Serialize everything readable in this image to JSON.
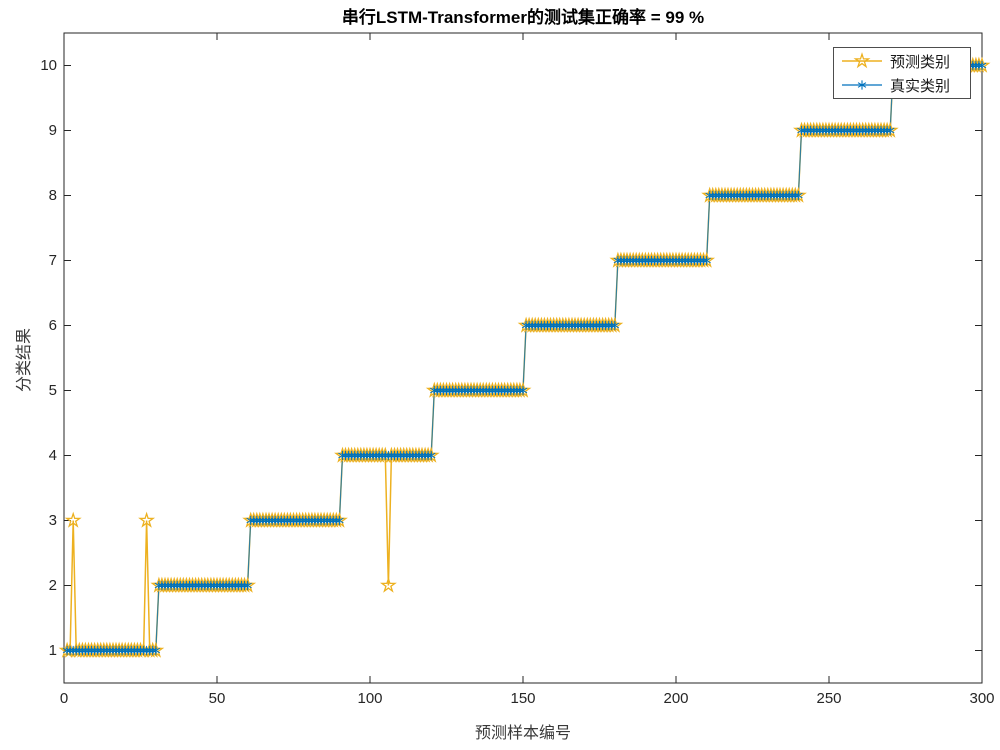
{
  "figure": {
    "background": "#ffffff"
  },
  "chart_data": {
    "type": "line",
    "title": "串行LSTM-Transformer的测试集正确率 = 99 %",
    "xlabel": "预测样本编号",
    "ylabel": "分类结果",
    "xlim": [
      0,
      300
    ],
    "ylim": [
      0.5,
      10.5
    ],
    "xticks": [
      0,
      50,
      100,
      150,
      200,
      250,
      300
    ],
    "yticks": [
      1,
      2,
      3,
      4,
      5,
      6,
      7,
      8,
      9,
      10
    ],
    "grid": false,
    "legend_position": "northeast",
    "axis_color": "#262626",
    "n_samples": 300,
    "samples_per_class": 30,
    "accuracy_percent": 99,
    "true_segments": [
      {
        "from": 1,
        "to": 30,
        "value": 1
      },
      {
        "from": 31,
        "to": 60,
        "value": 2
      },
      {
        "from": 61,
        "to": 90,
        "value": 3
      },
      {
        "from": 91,
        "to": 120,
        "value": 4
      },
      {
        "from": 121,
        "to": 150,
        "value": 5
      },
      {
        "from": 151,
        "to": 180,
        "value": 6
      },
      {
        "from": 181,
        "to": 210,
        "value": 7
      },
      {
        "from": 211,
        "to": 240,
        "value": 8
      },
      {
        "from": 241,
        "to": 270,
        "value": 9
      },
      {
        "from": 271,
        "to": 300,
        "value": 10
      }
    ],
    "series": [
      {
        "name": "预测类别",
        "color": "#EDB120",
        "marker": "pentagram",
        "derived_from": "true_segments",
        "outliers": [
          {
            "x": 3,
            "y": 3
          },
          {
            "x": 27,
            "y": 3
          },
          {
            "x": 106,
            "y": 2
          }
        ]
      },
      {
        "name": "真实类别",
        "color": "#0072BD",
        "marker": "asterisk",
        "derived_from": "true_segments",
        "outliers": []
      }
    ]
  }
}
